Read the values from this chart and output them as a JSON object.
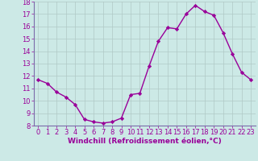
{
  "x": [
    0,
    1,
    2,
    3,
    4,
    5,
    6,
    7,
    8,
    9,
    10,
    11,
    12,
    13,
    14,
    15,
    16,
    17,
    18,
    19,
    20,
    21,
    22,
    23
  ],
  "y": [
    11.7,
    11.4,
    10.7,
    10.3,
    9.7,
    8.5,
    8.3,
    8.2,
    8.3,
    8.6,
    10.5,
    10.6,
    12.8,
    14.8,
    15.9,
    15.8,
    17.0,
    17.7,
    17.2,
    16.9,
    15.5,
    13.8,
    12.3,
    11.7
  ],
  "line_color": "#990099",
  "marker": "D",
  "marker_size": 2.2,
  "linewidth": 1.0,
  "bg_color": "#cce9e6",
  "grid_color": "#b0c8c5",
  "xlabel": "Windchill (Refroidissement éolien,°C)",
  "xlabel_color": "#990099",
  "tick_color": "#990099",
  "axis_line_color": "#7b6baa",
  "ylim": [
    8,
    18
  ],
  "xlim": [
    -0.5,
    23.5
  ],
  "yticks": [
    8,
    9,
    10,
    11,
    12,
    13,
    14,
    15,
    16,
    17,
    18
  ],
  "xticks": [
    0,
    1,
    2,
    3,
    4,
    5,
    6,
    7,
    8,
    9,
    10,
    11,
    12,
    13,
    14,
    15,
    16,
    17,
    18,
    19,
    20,
    21,
    22,
    23
  ],
  "xlabel_fontsize": 6.5,
  "tick_fontsize": 6.0
}
